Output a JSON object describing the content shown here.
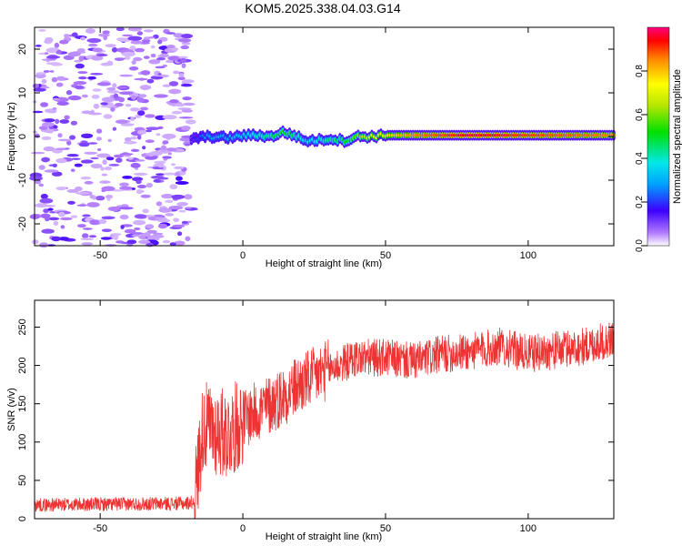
{
  "title": "KOM5.2025.338.04.03.G14",
  "chart_data": [
    {
      "type": "heatmap",
      "xlabel": "Height of straight line (km)",
      "ylabel": "Frequency (Hz)",
      "xlim": [
        -73,
        130
      ],
      "ylim": [
        -25,
        25
      ],
      "xticks": [
        -50,
        0,
        50,
        100
      ],
      "yticks": [
        -20,
        -10,
        0,
        10,
        20
      ],
      "noise_region_end_km": -18,
      "signal_track": {
        "x_km": [
          -18,
          -12,
          -5,
          0,
          5,
          10,
          14,
          18,
          22,
          27,
          31,
          36,
          40,
          45,
          50,
          60,
          80,
          100,
          130
        ],
        "freq_hz": [
          -0.5,
          0.0,
          -0.3,
          0.2,
          0.3,
          0.0,
          1.0,
          0.3,
          -1.0,
          -0.8,
          -0.5,
          -1.0,
          0.0,
          0.0,
          0.3,
          0.3,
          0.3,
          0.3,
          0.3
        ],
        "amplitude": [
          0.15,
          0.3,
          0.3,
          0.35,
          0.4,
          0.45,
          0.55,
          0.45,
          0.35,
          0.4,
          0.45,
          0.5,
          0.6,
          0.7,
          0.75,
          0.85,
          0.95,
          0.9,
          0.85
        ]
      },
      "colorbar": {
        "label": "Normalized spectral amplitude",
        "range": [
          0,
          1
        ],
        "ticks": [
          "0.0",
          "0.2",
          "0.4",
          "0.6",
          "0.8"
        ]
      }
    },
    {
      "type": "line",
      "xlabel": "Height of straight line (km)",
      "ylabel": "SNR (v/v)",
      "xlim": [
        -73,
        130
      ],
      "ylim": [
        0,
        285
      ],
      "xticks": [
        -50,
        0,
        50,
        100
      ],
      "yticks": [
        0,
        50,
        100,
        150,
        200,
        250
      ],
      "color": "#ee3333",
      "trend": {
        "x_km": [
          -73,
          -20,
          -17,
          -14,
          -10,
          -5,
          0,
          10,
          20,
          30,
          40,
          50,
          60,
          70,
          80,
          90,
          100,
          110,
          120,
          130
        ],
        "snr": [
          18,
          20,
          22,
          120,
          115,
          110,
          130,
          150,
          175,
          195,
          210,
          210,
          205,
          215,
          218,
          225,
          215,
          220,
          225,
          235
        ]
      }
    }
  ]
}
